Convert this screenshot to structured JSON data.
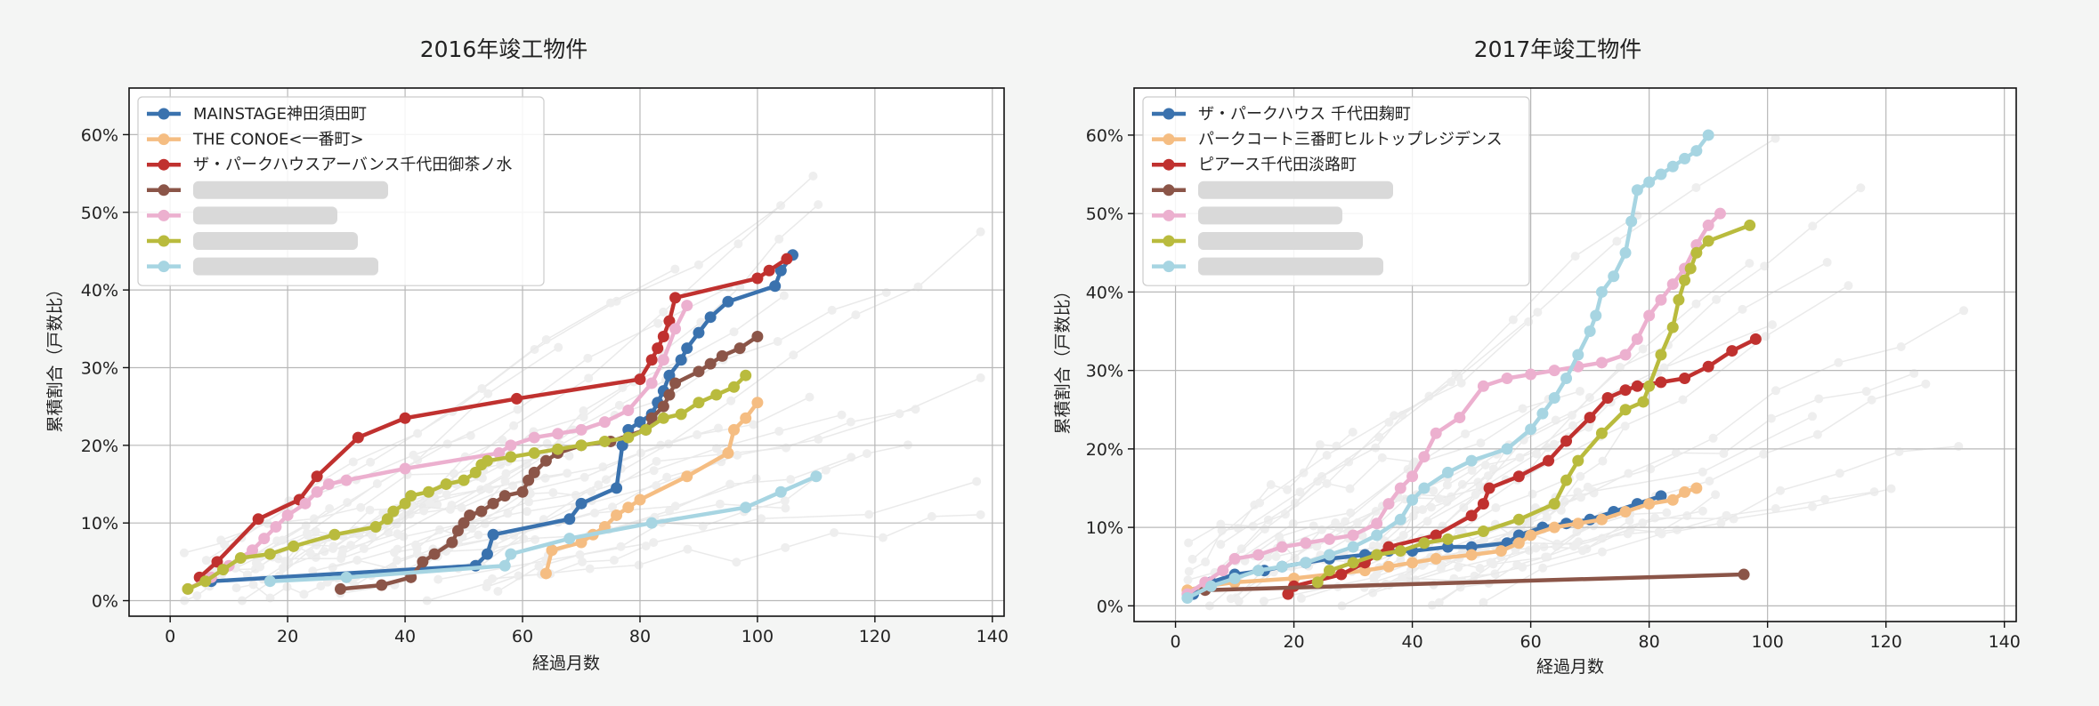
{
  "colors": {
    "blue": "#3a72ae",
    "orange": "#f5bd82",
    "red": "#c0312f",
    "brown": "#8b5548",
    "pink": "#ecb0cf",
    "olive": "#b9bb3d",
    "lightblue": "#a7d5e2",
    "grey": "#bdbdbd"
  },
  "chart_data": [
    {
      "type": "line",
      "title": "2016年竣工物件",
      "xlabel": "経過月数",
      "ylabel": "累積割合（戸数比）",
      "xlim": [
        -7,
        142
      ],
      "ylim": [
        -2,
        66
      ],
      "xticks": [
        "0",
        "20",
        "40",
        "60",
        "80",
        "100",
        "120",
        "140"
      ],
      "yticks": [
        "0%",
        "10%",
        "20%",
        "30%",
        "40%",
        "50%",
        "60%"
      ],
      "grid": true,
      "legend": "top-left",
      "series": [
        {
          "name": "MAINSTAGE神田須田町",
          "color": "blue",
          "x": [
            7,
            52,
            54,
            55,
            68,
            70,
            76,
            77,
            78,
            80,
            82,
            83,
            84,
            85,
            87,
            88,
            90,
            92,
            95,
            103,
            104,
            106
          ],
          "y": [
            2.5,
            4.5,
            6,
            8.5,
            10.5,
            12.5,
            14.5,
            20,
            22,
            23,
            24,
            25.5,
            27,
            29,
            31,
            32.5,
            34.5,
            36.5,
            38.5,
            40.5,
            42.5,
            44.5
          ]
        },
        {
          "name": "THE CONOE<一番町>",
          "color": "orange",
          "x": [
            64,
            65,
            70,
            72,
            74,
            76,
            78,
            80,
            88,
            95,
            96,
            98,
            100
          ],
          "y": [
            3.5,
            6.5,
            7.5,
            8.5,
            9.5,
            11,
            12,
            13,
            16,
            19,
            22,
            23.5,
            25.5
          ]
        },
        {
          "name": "ザ・パークハウスアーバンス千代田御茶ノ水",
          "color": "red",
          "x": [
            5,
            8,
            15,
            22,
            25,
            32,
            40,
            59,
            80,
            82,
            83,
            84,
            85,
            86,
            100,
            102,
            105
          ],
          "y": [
            3,
            5,
            10.5,
            13,
            16,
            21,
            23.5,
            26,
            28.5,
            31,
            32.5,
            34,
            36,
            39,
            41.5,
            42.5,
            44
          ]
        },
        {
          "name": "",
          "color": "brown",
          "x": [
            29,
            36,
            41,
            43,
            45,
            48,
            49,
            50,
            51,
            53,
            55,
            57,
            60,
            61,
            62,
            64,
            66,
            70,
            75,
            81,
            82,
            84,
            85,
            86,
            90,
            92,
            94,
            97,
            100
          ],
          "y": [
            1.5,
            2,
            3,
            5,
            6,
            7.5,
            9,
            10,
            11,
            11.5,
            12.5,
            13.5,
            14,
            15.5,
            16.5,
            18,
            19,
            20,
            20.5,
            22,
            23.5,
            25,
            26.5,
            28,
            29.5,
            30.5,
            31.5,
            32.5,
            34
          ]
        },
        {
          "name": "",
          "color": "pink",
          "x": [
            3,
            7,
            10,
            14,
            16,
            18,
            20,
            23,
            25,
            27,
            30,
            40,
            56,
            58,
            62,
            66,
            70,
            74,
            78,
            82,
            84,
            86,
            88
          ],
          "y": [
            1.5,
            3,
            4.5,
            6.5,
            8,
            9.5,
            11,
            12.5,
            14,
            15,
            15.5,
            17,
            19,
            20,
            21,
            21.5,
            22,
            23,
            24.5,
            28,
            31,
            35,
            38
          ]
        },
        {
          "name": "",
          "color": "olive",
          "x": [
            3,
            6,
            9,
            12,
            17,
            21,
            28,
            35,
            37,
            38,
            40,
            41,
            44,
            47,
            50,
            52,
            53,
            54,
            58,
            62,
            66,
            70,
            74,
            78,
            81,
            84,
            87,
            90,
            93,
            96,
            98
          ],
          "y": [
            1.5,
            2.5,
            4,
            5.5,
            6,
            7,
            8.5,
            9.5,
            10.5,
            11.5,
            12.5,
            13.5,
            14,
            15,
            15.5,
            16.5,
            17.5,
            18,
            18.5,
            19,
            19.5,
            20,
            20.5,
            21,
            22,
            23.5,
            24,
            25.5,
            26.5,
            27.5,
            29
          ]
        },
        {
          "name": "",
          "color": "lightblue",
          "x": [
            17,
            30,
            57,
            58,
            68,
            82,
            98,
            104,
            110
          ],
          "y": [
            2.5,
            3,
            4.5,
            6,
            8,
            10,
            12,
            14,
            16
          ]
        }
      ]
    },
    {
      "type": "line",
      "title": "2017年竣工物件",
      "xlabel": "経過月数",
      "ylabel": "累積割合（戸数比）",
      "xlim": [
        -7,
        142
      ],
      "ylim": [
        -2,
        66
      ],
      "xticks": [
        "0",
        "20",
        "40",
        "60",
        "80",
        "100",
        "120",
        "140"
      ],
      "yticks": [
        "0%",
        "10%",
        "20%",
        "30%",
        "40%",
        "50%",
        "60%"
      ],
      "grid": true,
      "legend": "top-left",
      "series": [
        {
          "name": "ザ・パークハウス 千代田麹町",
          "color": "blue",
          "x": [
            3,
            6,
            10,
            15,
            18,
            22,
            26,
            32,
            36,
            40,
            46,
            50,
            56,
            58,
            62,
            66,
            70,
            74,
            78,
            82
          ],
          "y": [
            1.5,
            3,
            4,
            4.5,
            5,
            5.5,
            6,
            6.5,
            7,
            7,
            7.5,
            7.5,
            8,
            9,
            10,
            10.5,
            11,
            12,
            13,
            14
          ]
        },
        {
          "name": "パークコート三番町ヒルトップレジデンス",
          "color": "orange",
          "x": [
            2,
            5,
            10,
            20,
            32,
            36,
            40,
            44,
            50,
            55,
            58,
            60,
            64,
            68,
            72,
            76,
            80,
            84,
            86,
            88
          ],
          "y": [
            2,
            2.5,
            3,
            3.5,
            4.5,
            5,
            5.5,
            6,
            6.5,
            7,
            8,
            9,
            10,
            10.5,
            11,
            12,
            13,
            13.5,
            14.5,
            15
          ]
        },
        {
          "name": "ピアース千代田淡路町",
          "color": "red",
          "x": [
            19,
            20,
            28,
            32,
            36,
            44,
            50,
            52,
            53,
            58,
            63,
            66,
            70,
            73,
            76,
            78,
            82,
            86,
            90,
            94,
            98
          ],
          "y": [
            1.5,
            2.5,
            4,
            5.5,
            7.5,
            9,
            11.5,
            13,
            15,
            16.5,
            18.5,
            21,
            24,
            26.5,
            27.5,
            28,
            28.5,
            29,
            30.5,
            32.5,
            34
          ]
        },
        {
          "name": "",
          "color": "brown",
          "x": [
            5,
            96
          ],
          "y": [
            2,
            4
          ]
        },
        {
          "name": "",
          "color": "pink",
          "x": [
            2,
            5,
            8,
            10,
            14,
            18,
            22,
            26,
            30,
            34,
            36,
            38,
            40,
            42,
            44,
            48,
            52,
            56,
            60,
            64,
            68,
            72,
            76,
            78,
            80,
            82,
            84,
            86,
            88,
            90,
            92
          ],
          "y": [
            1.5,
            3,
            4.5,
            6,
            6.5,
            7.5,
            8,
            8.5,
            9,
            10.5,
            13,
            15,
            16.5,
            19,
            22,
            24,
            28,
            29,
            29.5,
            30,
            30.5,
            31,
            32,
            34,
            37,
            39,
            41,
            43,
            46,
            48.5,
            50
          ]
        },
        {
          "name": "",
          "color": "olive",
          "x": [
            24,
            26,
            30,
            34,
            38,
            42,
            46,
            52,
            58,
            64,
            66,
            68,
            72,
            76,
            79,
            80,
            82,
            84,
            85,
            86,
            87,
            88,
            90,
            97
          ],
          "y": [
            3,
            4.5,
            5.5,
            6.5,
            7,
            8,
            8.5,
            9.5,
            11,
            13,
            16,
            18.5,
            22,
            25,
            26,
            28,
            32,
            35.5,
            39,
            41.5,
            43,
            45,
            46.5,
            48.5
          ]
        },
        {
          "name": "",
          "color": "lightblue",
          "x": [
            2,
            6,
            10,
            14,
            18,
            22,
            26,
            30,
            34,
            38,
            40,
            42,
            46,
            50,
            56,
            60,
            62,
            64,
            66,
            68,
            70,
            71,
            72,
            74,
            76,
            77,
            78,
            80,
            82,
            84,
            86,
            88,
            90
          ],
          "y": [
            1,
            2.5,
            3.5,
            4.5,
            5,
            5.5,
            6.5,
            7.5,
            9,
            11,
            13.5,
            15,
            17,
            18.5,
            20,
            22.5,
            24.5,
            26.5,
            29,
            32,
            35,
            37,
            40,
            42,
            45,
            49,
            53,
            54,
            55,
            56,
            57,
            58,
            60
          ]
        }
      ]
    }
  ]
}
